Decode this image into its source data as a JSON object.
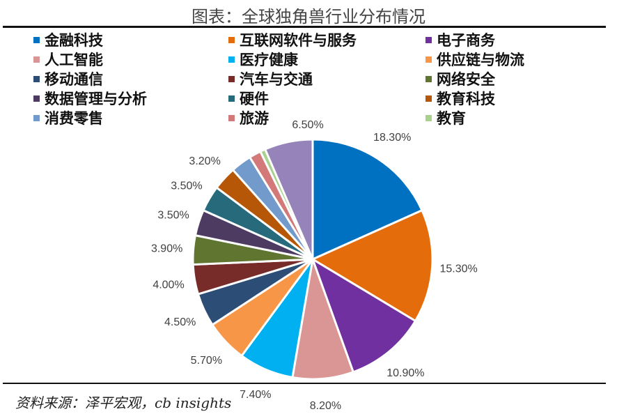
{
  "title": "图表：全球独角兽行业分布情况",
  "source": "资料来源：泽平宏观，cb insights",
  "chart_data": {
    "type": "pie",
    "title": "图表：全球独角兽行业分布情况",
    "start": "top, clockwise",
    "legend_position": "top",
    "slices": [
      {
        "name": "金融科技",
        "value": 18.3,
        "label": "18.30%",
        "color": "#0070C0"
      },
      {
        "name": "互联网软件与服务",
        "value": 15.3,
        "label": "15.30%",
        "color": "#E46C0A"
      },
      {
        "name": "电子商务",
        "value": 10.9,
        "label": "10.90%",
        "color": "#7030A0"
      },
      {
        "name": "人工智能",
        "value": 8.2,
        "label": "8.20%",
        "color": "#D99694"
      },
      {
        "name": "医疗健康",
        "value": 7.4,
        "label": "7.40%",
        "color": "#00B0F0"
      },
      {
        "name": "供应链与物流",
        "value": 5.7,
        "label": "5.70%",
        "color": "#F79646"
      },
      {
        "name": "移动通信",
        "value": 4.5,
        "label": "4.50%",
        "color": "#2C4D75"
      },
      {
        "name": "汽车与交通",
        "value": 4.0,
        "label": "4.00%",
        "color": "#772C2A"
      },
      {
        "name": "网络安全",
        "value": 3.9,
        "label": "3.90%",
        "color": "#5F7530"
      },
      {
        "name": "数据管理与分析",
        "value": 3.5,
        "label": "3.50%",
        "color": "#4D3B62"
      },
      {
        "name": "硬件",
        "value": 3.5,
        "label": "3.50%",
        "color": "#276A7C"
      },
      {
        "name": "教育科技",
        "value": 3.2,
        "label": "3.20%",
        "color": "#B65708"
      },
      {
        "name": "消费零售",
        "value": 2.8,
        "label": "",
        "color": "#729ACA"
      },
      {
        "name": "旅游",
        "value": 1.6,
        "label": "",
        "color": "#D4797A"
      },
      {
        "name": "教育",
        "value": 0.7,
        "label": "",
        "color": "#A9D18E"
      },
      {
        "name": "",
        "value": 6.5,
        "label": "6.50%",
        "color": "#9683B9"
      }
    ]
  }
}
